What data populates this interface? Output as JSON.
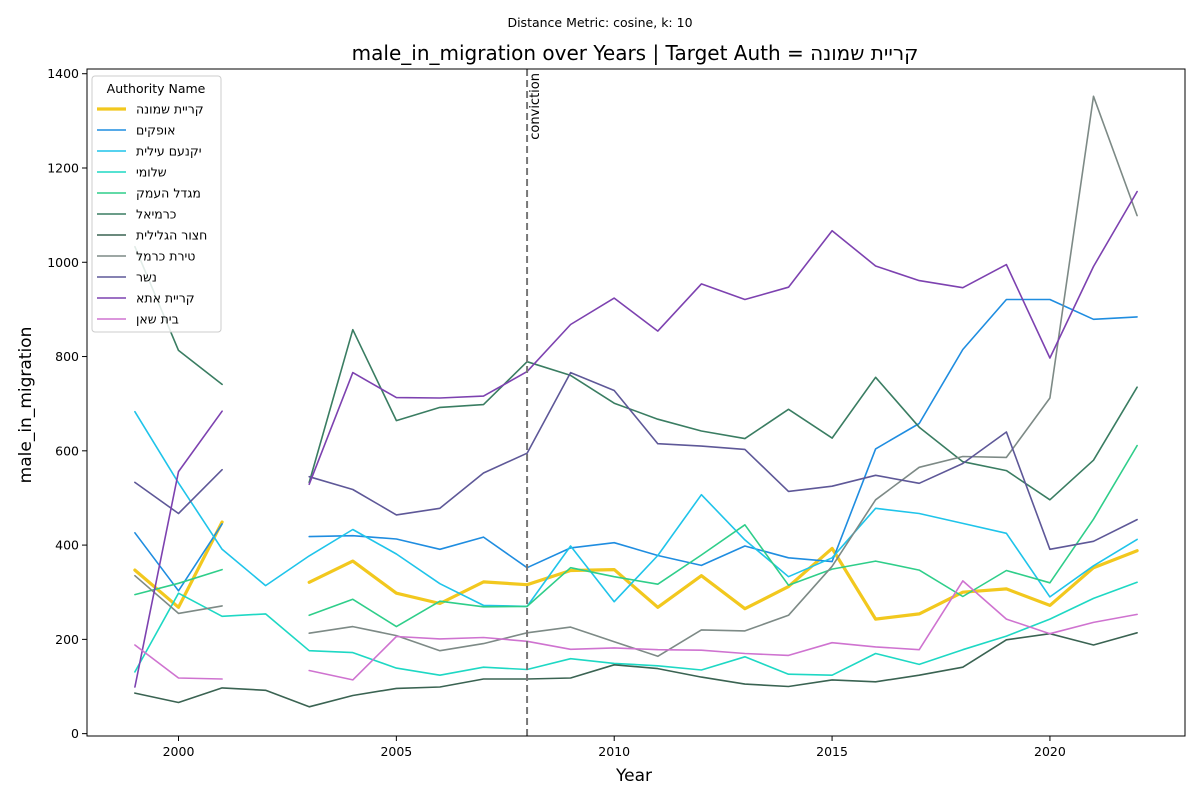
{
  "chart_data": {
    "type": "line",
    "suptitle": "Distance Metric: cosine, k: 10",
    "title": "male_in_migration over Years | Target Auth = קריית שמונה",
    "xlabel": "Year",
    "ylabel": "male_in_migration",
    "xlim": [
      1997.9,
      2023.1
    ],
    "ylim": [
      -5,
      1410
    ],
    "xticks": [
      2000,
      2005,
      2010,
      2015,
      2020
    ],
    "yticks": [
      0,
      200,
      400,
      600,
      800,
      1000,
      1200,
      1400
    ],
    "legend": {
      "title": "Authority Name",
      "position": "top-left"
    },
    "vline": {
      "x": 2008,
      "label": "conviction"
    },
    "series": [
      {
        "name": "קריית שמונה",
        "color": "#f2c81e",
        "width": 3.2,
        "points": [
          [
            1999,
            347
          ],
          [
            2000,
            268
          ],
          [
            2001,
            449
          ],
          [
            2003,
            321
          ],
          [
            2004,
            366
          ],
          [
            2005,
            298
          ],
          [
            2006,
            276
          ],
          [
            2007,
            322
          ],
          [
            2008,
            316
          ],
          [
            2009,
            346
          ],
          [
            2010,
            348
          ],
          [
            2011,
            268
          ],
          [
            2012,
            335
          ],
          [
            2013,
            265
          ],
          [
            2014,
            312
          ],
          [
            2015,
            393
          ],
          [
            2016,
            243
          ],
          [
            2017,
            254
          ],
          [
            2018,
            300
          ],
          [
            2019,
            307
          ],
          [
            2020,
            272
          ],
          [
            2021,
            352
          ],
          [
            2022,
            388
          ]
        ]
      },
      {
        "name": "אופקים",
        "color": "#1f8de0",
        "width": 1.6,
        "points": [
          [
            1999,
            426
          ],
          [
            2000,
            303
          ],
          [
            2001,
            445
          ],
          [
            2003,
            418
          ],
          [
            2004,
            420
          ],
          [
            2005,
            413
          ],
          [
            2006,
            391
          ],
          [
            2007,
            417
          ],
          [
            2008,
            352
          ],
          [
            2009,
            394
          ],
          [
            2010,
            405
          ],
          [
            2011,
            378
          ],
          [
            2012,
            357
          ],
          [
            2013,
            398
          ],
          [
            2014,
            373
          ],
          [
            2015,
            365
          ],
          [
            2016,
            604
          ],
          [
            2017,
            658
          ],
          [
            2018,
            815
          ],
          [
            2019,
            921
          ],
          [
            2020,
            921
          ],
          [
            2021,
            879
          ],
          [
            2022,
            884
          ]
        ]
      },
      {
        "name": "יקנעם עילית",
        "color": "#1fc4ea",
        "width": 1.6,
        "points": [
          [
            1999,
            683
          ],
          [
            2000,
            532
          ],
          [
            2001,
            391
          ],
          [
            2002,
            314
          ],
          [
            2003,
            377
          ],
          [
            2004,
            433
          ],
          [
            2005,
            381
          ],
          [
            2006,
            318
          ],
          [
            2007,
            272
          ],
          [
            2008,
            270
          ],
          [
            2009,
            398
          ],
          [
            2010,
            280
          ],
          [
            2011,
            378
          ],
          [
            2012,
            507
          ],
          [
            2013,
            411
          ],
          [
            2014,
            333
          ],
          [
            2015,
            373
          ],
          [
            2016,
            478
          ],
          [
            2017,
            467
          ],
          [
            2018,
            446
          ],
          [
            2019,
            425
          ],
          [
            2020,
            290
          ],
          [
            2021,
            356
          ],
          [
            2022,
            412
          ]
        ]
      },
      {
        "name": "שלומי",
        "color": "#1ed8c4",
        "width": 1.6,
        "points": [
          [
            1999,
            131
          ],
          [
            2000,
            298
          ],
          [
            2001,
            249
          ],
          [
            2002,
            254
          ],
          [
            2003,
            176
          ],
          [
            2004,
            172
          ],
          [
            2005,
            139
          ],
          [
            2006,
            124
          ],
          [
            2007,
            141
          ],
          [
            2008,
            136
          ],
          [
            2009,
            159
          ],
          [
            2010,
            149
          ],
          [
            2011,
            144
          ],
          [
            2012,
            135
          ],
          [
            2013,
            163
          ],
          [
            2014,
            126
          ],
          [
            2015,
            124
          ],
          [
            2016,
            170
          ],
          [
            2017,
            147
          ],
          [
            2018,
            178
          ],
          [
            2019,
            207
          ],
          [
            2020,
            243
          ],
          [
            2021,
            287
          ],
          [
            2022,
            321
          ]
        ]
      },
      {
        "name": "מגדל העמק",
        "color": "#2fce8a",
        "width": 1.6,
        "points": [
          [
            1999,
            295
          ],
          [
            2000,
            319
          ],
          [
            2001,
            348
          ],
          [
            2003,
            251
          ],
          [
            2004,
            285
          ],
          [
            2005,
            227
          ],
          [
            2006,
            281
          ],
          [
            2007,
            269
          ],
          [
            2008,
            270
          ],
          [
            2009,
            352
          ],
          [
            2010,
            333
          ],
          [
            2011,
            317
          ],
          [
            2012,
            379
          ],
          [
            2013,
            443
          ],
          [
            2014,
            315
          ],
          [
            2015,
            349
          ],
          [
            2016,
            366
          ],
          [
            2017,
            347
          ],
          [
            2018,
            291
          ],
          [
            2019,
            346
          ],
          [
            2020,
            320
          ],
          [
            2021,
            455
          ],
          [
            2022,
            611
          ]
        ]
      },
      {
        "name": "כרמיאל",
        "color": "#3a7d62",
        "width": 1.6,
        "points": [
          [
            1999,
            1033
          ],
          [
            2000,
            813
          ],
          [
            2001,
            741
          ],
          [
            2003,
            533
          ],
          [
            2004,
            857
          ],
          [
            2005,
            664
          ],
          [
            2006,
            692
          ],
          [
            2007,
            698
          ],
          [
            2008,
            789
          ],
          [
            2009,
            760
          ],
          [
            2010,
            701
          ],
          [
            2011,
            667
          ],
          [
            2012,
            642
          ],
          [
            2013,
            626
          ],
          [
            2014,
            688
          ],
          [
            2015,
            627
          ],
          [
            2016,
            756
          ],
          [
            2017,
            650
          ],
          [
            2018,
            577
          ],
          [
            2019,
            558
          ],
          [
            2020,
            496
          ],
          [
            2021,
            580
          ],
          [
            2022,
            735
          ]
        ]
      },
      {
        "name": "חצור הגלילית",
        "color": "#3a6352",
        "width": 1.6,
        "points": [
          [
            1999,
            86
          ],
          [
            2000,
            66
          ],
          [
            2001,
            97
          ],
          [
            2002,
            92
          ],
          [
            2003,
            57
          ],
          [
            2004,
            81
          ],
          [
            2005,
            96
          ],
          [
            2006,
            99
          ],
          [
            2007,
            116
          ],
          [
            2008,
            116
          ],
          [
            2009,
            118
          ],
          [
            2010,
            146
          ],
          [
            2011,
            138
          ],
          [
            2012,
            120
          ],
          [
            2013,
            105
          ],
          [
            2014,
            100
          ],
          [
            2015,
            114
          ],
          [
            2016,
            110
          ],
          [
            2017,
            124
          ],
          [
            2018,
            141
          ],
          [
            2019,
            199
          ],
          [
            2020,
            212
          ],
          [
            2021,
            188
          ],
          [
            2022,
            214
          ]
        ]
      },
      {
        "name": "טירת כרמל",
        "color": "#7d8a86",
        "width": 1.6,
        "points": [
          [
            1999,
            335
          ],
          [
            2000,
            255
          ],
          [
            2001,
            271
          ],
          [
            2003,
            213
          ],
          [
            2004,
            227
          ],
          [
            2005,
            208
          ],
          [
            2006,
            176
          ],
          [
            2007,
            191
          ],
          [
            2008,
            214
          ],
          [
            2009,
            226
          ],
          [
            2010,
            195
          ],
          [
            2011,
            164
          ],
          [
            2012,
            220
          ],
          [
            2013,
            218
          ],
          [
            2014,
            251
          ],
          [
            2015,
            355
          ],
          [
            2016,
            496
          ],
          [
            2017,
            565
          ],
          [
            2018,
            588
          ],
          [
            2019,
            586
          ],
          [
            2020,
            712
          ],
          [
            2021,
            1352
          ],
          [
            2022,
            1099
          ]
        ]
      },
      {
        "name": "נשר",
        "color": "#5e5898",
        "width": 1.6,
        "points": [
          [
            1999,
            533
          ],
          [
            2000,
            467
          ],
          [
            2001,
            560
          ],
          [
            2003,
            545
          ],
          [
            2004,
            518
          ],
          [
            2005,
            464
          ],
          [
            2006,
            478
          ],
          [
            2007,
            553
          ],
          [
            2008,
            595
          ],
          [
            2009,
            766
          ],
          [
            2010,
            728
          ],
          [
            2011,
            615
          ],
          [
            2012,
            610
          ],
          [
            2013,
            603
          ],
          [
            2014,
            514
          ],
          [
            2015,
            525
          ],
          [
            2016,
            548
          ],
          [
            2017,
            531
          ],
          [
            2018,
            573
          ],
          [
            2019,
            640
          ],
          [
            2020,
            391
          ],
          [
            2021,
            408
          ],
          [
            2022,
            454
          ]
        ]
      },
      {
        "name": "קריית אתא",
        "color": "#7d42b0",
        "width": 1.6,
        "points": [
          [
            1999,
            99
          ],
          [
            2000,
            556
          ],
          [
            2001,
            684
          ],
          [
            2003,
            529
          ],
          [
            2004,
            766
          ],
          [
            2005,
            713
          ],
          [
            2006,
            712
          ],
          [
            2007,
            716
          ],
          [
            2008,
            768
          ],
          [
            2009,
            868
          ],
          [
            2010,
            924
          ],
          [
            2011,
            854
          ],
          [
            2012,
            954
          ],
          [
            2013,
            921
          ],
          [
            2014,
            947
          ],
          [
            2015,
            1067
          ],
          [
            2016,
            992
          ],
          [
            2017,
            961
          ],
          [
            2018,
            946
          ],
          [
            2019,
            995
          ],
          [
            2020,
            797
          ],
          [
            2021,
            991
          ],
          [
            2022,
            1150
          ]
        ]
      },
      {
        "name": "בית שאן",
        "color": "#cf73d0",
        "width": 1.6,
        "points": [
          [
            1999,
            188
          ],
          [
            2000,
            118
          ],
          [
            2001,
            116
          ],
          [
            2003,
            134
          ],
          [
            2004,
            114
          ],
          [
            2005,
            206
          ],
          [
            2006,
            201
          ],
          [
            2007,
            204
          ],
          [
            2008,
            196
          ],
          [
            2009,
            179
          ],
          [
            2010,
            182
          ],
          [
            2011,
            178
          ],
          [
            2012,
            177
          ],
          [
            2013,
            170
          ],
          [
            2014,
            166
          ],
          [
            2015,
            193
          ],
          [
            2016,
            184
          ],
          [
            2017,
            178
          ],
          [
            2018,
            324
          ],
          [
            2019,
            243
          ],
          [
            2020,
            212
          ],
          [
            2021,
            236
          ],
          [
            2022,
            253
          ]
        ]
      }
    ]
  }
}
